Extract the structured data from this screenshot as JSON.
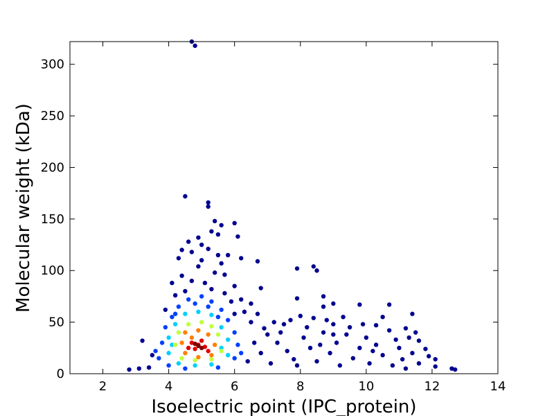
{
  "chart_data": {
    "type": "scatter",
    "x_label": "Isoelectric point (IPC_protein)",
    "y_label": "Molecular weight (kDa)",
    "xlim": [
      1,
      14
    ],
    "xticks": [
      2,
      4,
      6,
      8,
      10,
      12,
      14
    ],
    "ylim": [
      0,
      322
    ],
    "yticks": [
      0,
      50,
      100,
      150,
      200,
      250,
      300
    ],
    "grid": false,
    "series": [
      {
        "color": "#00008f",
        "x": [
          4.7,
          4.8,
          4.5,
          5.2,
          5.2,
          6.0,
          5.4,
          5.6,
          5.3,
          5.5,
          6.1,
          4.9,
          4.6,
          5.0,
          4.4,
          4.7,
          5.2,
          5.8,
          6.2,
          6.7,
          4.3,
          5.6,
          4.9,
          7.9,
          8.4,
          8.5,
          5.4,
          5.7,
          4.1,
          6.0,
          6.8,
          8.7,
          7.9,
          9.0,
          9.8,
          10.7,
          8.7,
          11.4,
          12.6,
          12.7,
          2.8,
          3.1,
          3.2,
          12.1,
          12.1,
          11.9,
          11.6,
          11.5,
          11.2,
          10.5,
          10.3,
          9.9,
          9.3,
          9.0,
          8.8,
          8.4,
          8.0,
          7.7,
          7.5,
          7.2,
          6.9,
          6.7,
          6.5,
          6.3,
          6.5,
          6.2,
          7.0,
          7.3,
          7.6,
          7.8,
          8.1,
          8.3,
          8.5,
          8.7,
          8.9,
          9.1,
          9.2,
          9.4,
          9.6,
          9.8,
          10.0,
          10.1,
          10.3,
          10.5,
          10.7,
          10.8,
          11.0,
          11.1,
          11.3,
          11.4,
          11.6,
          11.8,
          7.1,
          7.4,
          7.9,
          8.2,
          8.6,
          9.0,
          9.5,
          10.2,
          10.9,
          11.2,
          6.8,
          6.6,
          6.4,
          4.4,
          4.7,
          5.1,
          5.3,
          4.5,
          5.7,
          4.2,
          5.9,
          6.0,
          3.9,
          3.5,
          3.4,
          5.5,
          5.0
        ],
        "values": [
          322,
          318,
          172,
          166,
          162,
          146,
          148,
          144,
          138,
          135,
          133,
          132,
          128,
          125,
          120,
          118,
          121,
          115,
          112,
          109,
          112,
          107,
          104,
          102,
          104,
          100,
          98,
          96,
          88,
          85,
          83,
          75,
          73,
          68,
          67,
          67,
          65,
          58,
          5,
          4,
          4,
          5,
          32,
          14,
          7,
          17,
          32,
          40,
          44,
          55,
          47,
          48,
          55,
          48,
          52,
          54,
          56,
          52,
          48,
          50,
          44,
          58,
          50,
          60,
          68,
          72,
          38,
          30,
          22,
          14,
          35,
          25,
          12,
          40,
          20,
          30,
          8,
          38,
          15,
          25,
          35,
          10,
          28,
          18,
          42,
          8,
          25,
          14,
          35,
          20,
          10,
          24,
          10,
          40,
          8,
          45,
          28,
          38,
          45,
          22,
          33,
          5,
          20,
          30,
          12,
          95,
          90,
          88,
          82,
          80,
          78,
          76,
          70,
          58,
          62,
          18,
          6,
          115,
          110
        ]
      },
      {
        "color": "#0040ff",
        "x": [
          4.6,
          5.0,
          5.3,
          4.3,
          5.6,
          4.1,
          5.8,
          3.9,
          6.0,
          3.8,
          6.1,
          3.7,
          6.0,
          4.0,
          5.5,
          4.5,
          6.2,
          3.6,
          4.8,
          5.2,
          5.5,
          4.2
        ],
        "values": [
          72,
          75,
          70,
          65,
          62,
          55,
          52,
          45,
          40,
          30,
          28,
          15,
          15,
          8,
          6,
          5,
          20,
          22,
          68,
          65,
          55,
          58
        ]
      },
      {
        "color": "#00d0ff",
        "x": [
          4.5,
          4.9,
          5.3,
          4.2,
          5.6,
          4.0,
          5.8,
          4.0,
          5.8,
          4.3,
          5.3,
          4.8,
          5.6,
          4.1
        ],
        "values": [
          58,
          60,
          57,
          48,
          45,
          35,
          33,
          20,
          18,
          10,
          9,
          8,
          25,
          28
        ]
      },
      {
        "color": "#c0ff40",
        "x": [
          4.6,
          5.0,
          5.3,
          4.3,
          5.5,
          4.2,
          5.6,
          4.4,
          5.3,
          4.8
        ],
        "values": [
          48,
          50,
          46,
          40,
          38,
          28,
          22,
          15,
          14,
          13
        ]
      },
      {
        "color": "#ff8000",
        "x": [
          4.5,
          4.9,
          5.2,
          4.4,
          5.4,
          4.5,
          5.3,
          4.9,
          4.7
        ],
        "values": [
          40,
          42,
          38,
          30,
          28,
          20,
          18,
          16,
          35
        ]
      },
      {
        "color": "#e00000",
        "x": [
          4.7,
          5.0,
          5.1,
          4.8,
          4.9,
          5.2,
          4.6
        ],
        "values": [
          30,
          32,
          26,
          24,
          28,
          22,
          25
        ]
      },
      {
        "color": "#800000",
        "x": [
          4.9,
          5.0,
          4.8
        ],
        "values": [
          27,
          25,
          29
        ]
      }
    ]
  }
}
